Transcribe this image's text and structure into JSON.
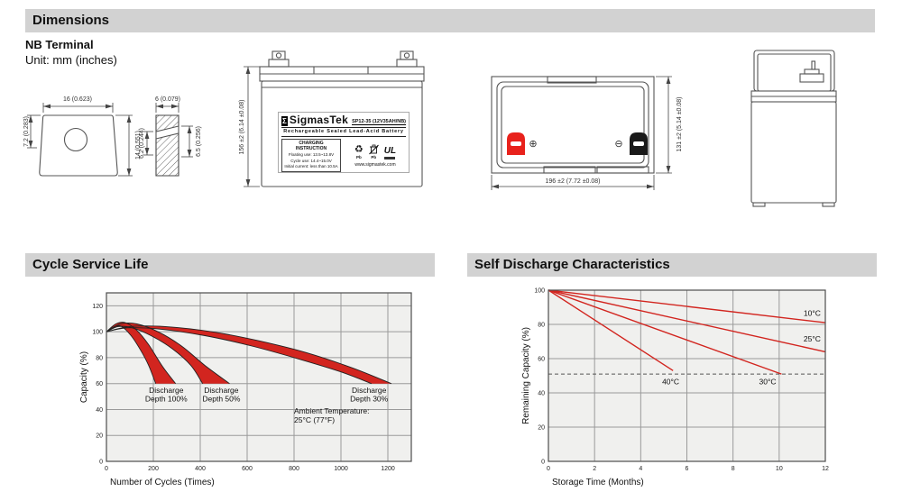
{
  "page": {
    "sections": {
      "dimensions": "Dimensions",
      "cycle": "Cycle Service Life",
      "self_discharge": "Self Discharge Characteristics"
    },
    "terminal_type": "NB Terminal",
    "unit_note": "Unit: mm (inches)"
  },
  "colors": {
    "header_bg": "#d2d2d2",
    "chart_red": "#d2251f",
    "terminal_red": "#e8221c",
    "terminal_black": "#1a1a1a",
    "plot_bg": "#f0f0ee",
    "grid": "#9a9a9a",
    "plot_border": "#4d4d4d",
    "drawing_stroke": "#555555"
  },
  "drawings": {
    "terminal_front": {
      "width": "16 (0.623)",
      "hole_offset": "7.2 (0.283)",
      "height": "14 (0.551)"
    },
    "terminal_section": {
      "width": "6 (0.079)",
      "inner": "6.2 (0.244)",
      "outer": "6.5 (0.256)"
    },
    "front_view": {
      "height": "156 ±2 (6.14 ±0.08)"
    },
    "top_view": {
      "width": "196 ±2 (7.72 ±0.08)",
      "height": "131 ±2 (5.14 ±0.08)",
      "positive_symbol": "⊕",
      "negative_symbol": "⊖"
    },
    "label": {
      "logo_letter": "Σ",
      "brand": "SigmasTek",
      "model": "SP12-35 (12V35AH/NB)",
      "subtitle": "Rechargeable Sealed Lead-Acid Battery",
      "charging_title": "CHARGING INSTRUCTION",
      "charging_lines": [
        "Floating use: 13.5~13.8V",
        "Cycle use: 14.4~15.0V",
        "Initial current: less than 10.5A"
      ],
      "pb_text": "Pb",
      "recycle_symbol": "♻",
      "ul_text": "UL",
      "website": "www.sigmastek.com"
    }
  },
  "chart_data": [
    {
      "type": "area",
      "title": "Cycle Service Life",
      "xlabel": "Number of Cycles (Times)",
      "ylabel": "Capacity (%)",
      "xlim": [
        0,
        1300
      ],
      "ylim": [
        0,
        130
      ],
      "xticks": [
        0,
        200,
        400,
        600,
        800,
        1000,
        1200
      ],
      "yticks": [
        0,
        20,
        40,
        60,
        80,
        100,
        120
      ],
      "grid": true,
      "annotation": {
        "lines": [
          "Ambient Temperature:",
          "25°C (77°F)"
        ],
        "x": 800,
        "y": 37
      },
      "bands": [
        {
          "name": "Discharge Depth 100%",
          "label_lines": [
            "Discharge",
            "Depth 100%"
          ],
          "label_x": 255,
          "label_y": 53,
          "upper": [
            [
              0,
              100
            ],
            [
              40,
              106
            ],
            [
              80,
              107
            ],
            [
              130,
              101
            ],
            [
              180,
              90
            ],
            [
              240,
              73
            ],
            [
              295,
              60
            ]
          ],
          "lower": [
            [
              0,
              100
            ],
            [
              35,
              104
            ],
            [
              65,
              104
            ],
            [
              105,
              97
            ],
            [
              145,
              86
            ],
            [
              180,
              74
            ],
            [
              210,
              60
            ]
          ]
        },
        {
          "name": "Discharge Depth 50%",
          "label_lines": [
            "Discharge",
            "Depth 50%"
          ],
          "label_x": 490,
          "label_y": 53,
          "upper": [
            [
              0,
              100
            ],
            [
              60,
              106
            ],
            [
              130,
              106
            ],
            [
              220,
              100
            ],
            [
              320,
              89
            ],
            [
              420,
              74
            ],
            [
              525,
              60
            ]
          ],
          "lower": [
            [
              0,
              100
            ],
            [
              50,
              104
            ],
            [
              110,
              103
            ],
            [
              190,
              97
            ],
            [
              280,
              87
            ],
            [
              360,
              74
            ],
            [
              410,
              60
            ]
          ]
        },
        {
          "name": "Discharge Depth 30%",
          "label_lines": [
            "Discharge",
            "Depth 30%"
          ],
          "label_x": 1120,
          "label_y": 53,
          "upper": [
            [
              0,
              100
            ],
            [
              100,
              104
            ],
            [
              250,
              104
            ],
            [
              450,
              100
            ],
            [
              650,
              93
            ],
            [
              850,
              84
            ],
            [
              1050,
              72
            ],
            [
              1215,
              60
            ]
          ],
          "lower": [
            [
              0,
              100
            ],
            [
              90,
              103
            ],
            [
              230,
              102
            ],
            [
              420,
              97
            ],
            [
              620,
              89
            ],
            [
              820,
              79
            ],
            [
              1000,
              69
            ],
            [
              1130,
              60
            ]
          ]
        }
      ]
    },
    {
      "type": "line",
      "title": "Self Discharge Characteristics",
      "xlabel": "Storage Time (Months)",
      "ylabel": "Remaining Capacity (%)",
      "xlim": [
        0,
        12
      ],
      "ylim": [
        0,
        100
      ],
      "xticks": [
        0,
        2,
        4,
        6,
        8,
        10,
        12
      ],
      "yticks": [
        0,
        20,
        40,
        60,
        80,
        100
      ],
      "grid": true,
      "threshold_line": {
        "y": 51,
        "style": "dashed"
      },
      "series": [
        {
          "name": "10°C",
          "points": [
            [
              0,
              100
            ],
            [
              12,
              81
            ]
          ],
          "label_x": 11.8,
          "label_y": 85,
          "anchor": "end"
        },
        {
          "name": "25°C",
          "points": [
            [
              0,
              100
            ],
            [
              12,
              64
            ]
          ],
          "label_x": 11.8,
          "label_y": 70,
          "anchor": "end"
        },
        {
          "name": "40°C",
          "points": [
            [
              0,
              100
            ],
            [
              5.4,
              53
            ]
          ],
          "label_x": 5.3,
          "label_y": 45,
          "anchor": "middle"
        },
        {
          "name": "30°C",
          "points": [
            [
              0,
              100
            ],
            [
              10.1,
              51
            ]
          ],
          "label_x": 9.5,
          "label_y": 45,
          "anchor": "middle"
        }
      ]
    }
  ]
}
